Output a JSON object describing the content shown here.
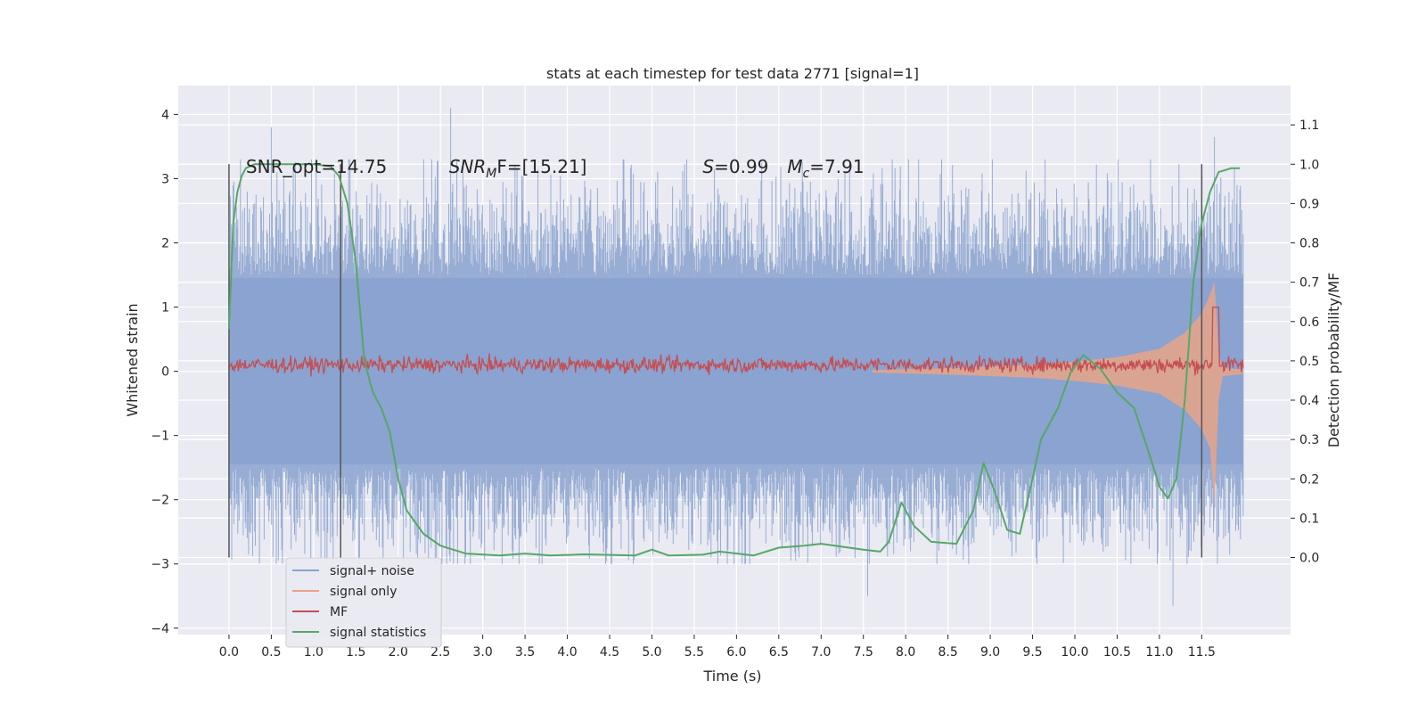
{
  "chart_data": {
    "type": "line",
    "title": "stats at each timestep for test data 2771 [signal=1]",
    "xlabel": "Time (s)",
    "ylabel": "Whitened strain",
    "ylabel_right": "Detection probability/MF",
    "xlim": [
      -0.6,
      12.55
    ],
    "ylim": [
      -4.1,
      4.45
    ],
    "ylim_right": [
      -0.196,
      1.2
    ],
    "x_ticks": [
      "0.0",
      "0.5",
      "1.0",
      "1.5",
      "2.0",
      "2.5",
      "3.0",
      "3.5",
      "4.0",
      "4.5",
      "5.0",
      "5.5",
      "6.0",
      "6.5",
      "7.0",
      "7.5",
      "8.0",
      "8.5",
      "9.0",
      "9.5",
      "10.0",
      "10.5",
      "11.0",
      "11.5"
    ],
    "y_ticks": [
      "4",
      "3",
      "2",
      "1",
      "0",
      "−1",
      "−2",
      "−3",
      "−4"
    ],
    "y_ticks_right": [
      "1.1",
      "1.0",
      "0.9",
      "0.8",
      "0.7",
      "0.6",
      "0.5",
      "0.4",
      "0.3",
      "0.2",
      "0.1",
      "0.0"
    ],
    "grid": true,
    "legend_position": "lower-left",
    "series": [
      {
        "name": "signal+ noise",
        "color": "#8aa2cf",
        "description_of_values": "noise-dominated whitened strain",
        "x_range": [
          0.0,
          11.99
        ],
        "typical_amplitude": [
          -1.8,
          2.2
        ],
        "extremes": [
          {
            "x": 0.5,
            "y": 3.8
          },
          {
            "x": 2.62,
            "y": 4.1
          },
          {
            "x": 11.65,
            "y": 3.65
          },
          {
            "x": 11.16,
            "y": -3.65
          },
          {
            "x": 7.55,
            "y": -3.5
          }
        ]
      },
      {
        "name": "signal only",
        "color": "#e8a488",
        "description_of_values": "chirp envelope (half-amplitude)",
        "points": [
          [
            7.6,
            0.02
          ],
          [
            8.5,
            0.05
          ],
          [
            9.5,
            0.1
          ],
          [
            10.0,
            0.15
          ],
          [
            10.5,
            0.22
          ],
          [
            11.0,
            0.35
          ],
          [
            11.3,
            0.6
          ],
          [
            11.5,
            0.9
          ],
          [
            11.6,
            1.2
          ],
          [
            11.65,
            1.4
          ],
          [
            11.7,
            0.3
          ],
          [
            11.75,
            0.05
          ],
          [
            11.99,
            0.03
          ]
        ]
      },
      {
        "name": "MF",
        "color": "#c44e52",
        "description_of_values": "matched filter output, noisy around 0.1",
        "level": 0.1,
        "peak": {
          "x": 11.67,
          "y": 1.0
        }
      },
      {
        "name": "signal statistics",
        "color": "#55a868",
        "axis": "right",
        "points": [
          [
            0.0,
            0.58
          ],
          [
            0.05,
            0.85
          ],
          [
            0.1,
            0.93
          ],
          [
            0.15,
            0.97
          ],
          [
            0.2,
            0.99
          ],
          [
            0.3,
            1.0
          ],
          [
            1.0,
            1.0
          ],
          [
            1.2,
            0.995
          ],
          [
            1.3,
            0.97
          ],
          [
            1.4,
            0.9
          ],
          [
            1.5,
            0.75
          ],
          [
            1.6,
            0.5
          ],
          [
            1.7,
            0.42
          ],
          [
            1.8,
            0.38
          ],
          [
            1.9,
            0.32
          ],
          [
            2.0,
            0.2
          ],
          [
            2.1,
            0.12
          ],
          [
            2.3,
            0.06
          ],
          [
            2.5,
            0.03
          ],
          [
            2.8,
            0.01
          ],
          [
            3.2,
            0.005
          ],
          [
            3.5,
            0.01
          ],
          [
            3.8,
            0.005
          ],
          [
            4.2,
            0.008
          ],
          [
            4.8,
            0.005
          ],
          [
            5.0,
            0.02
          ],
          [
            5.2,
            0.005
          ],
          [
            5.6,
            0.007
          ],
          [
            5.8,
            0.015
          ],
          [
            6.2,
            0.005
          ],
          [
            6.5,
            0.025
          ],
          [
            6.8,
            0.03
          ],
          [
            7.0,
            0.035
          ],
          [
            7.5,
            0.02
          ],
          [
            7.7,
            0.015
          ],
          [
            7.8,
            0.04
          ],
          [
            7.95,
            0.14
          ],
          [
            8.1,
            0.08
          ],
          [
            8.3,
            0.04
          ],
          [
            8.6,
            0.035
          ],
          [
            8.8,
            0.12
          ],
          [
            8.92,
            0.24
          ],
          [
            9.05,
            0.17
          ],
          [
            9.2,
            0.07
          ],
          [
            9.35,
            0.06
          ],
          [
            9.5,
            0.2
          ],
          [
            9.6,
            0.3
          ],
          [
            9.8,
            0.38
          ],
          [
            9.95,
            0.47
          ],
          [
            10.1,
            0.515
          ],
          [
            10.3,
            0.48
          ],
          [
            10.5,
            0.42
          ],
          [
            10.7,
            0.38
          ],
          [
            10.9,
            0.25
          ],
          [
            11.0,
            0.18
          ],
          [
            11.1,
            0.15
          ],
          [
            11.2,
            0.2
          ],
          [
            11.3,
            0.4
          ],
          [
            11.4,
            0.7
          ],
          [
            11.5,
            0.85
          ],
          [
            11.6,
            0.93
          ],
          [
            11.7,
            0.98
          ],
          [
            11.85,
            0.99
          ],
          [
            11.95,
            0.99
          ]
        ]
      }
    ],
    "vlines_x": [
      0.0,
      1.32,
      11.5
    ],
    "annotations": [
      {
        "text": "SNR_opt=14.75",
        "x": 0.2,
        "y": 3.2
      },
      {
        "prefix": "SNR",
        "sub": "M",
        "suffix": "F=[15.21]",
        "x": 2.6,
        "y": 3.2
      },
      {
        "prefix": "S",
        "suffix": "=0.99",
        "x": 5.6,
        "y": 3.2
      },
      {
        "prefix": "M",
        "sub": "c",
        "suffix": "=7.91",
        "x": 6.6,
        "y": 3.2
      }
    ]
  }
}
